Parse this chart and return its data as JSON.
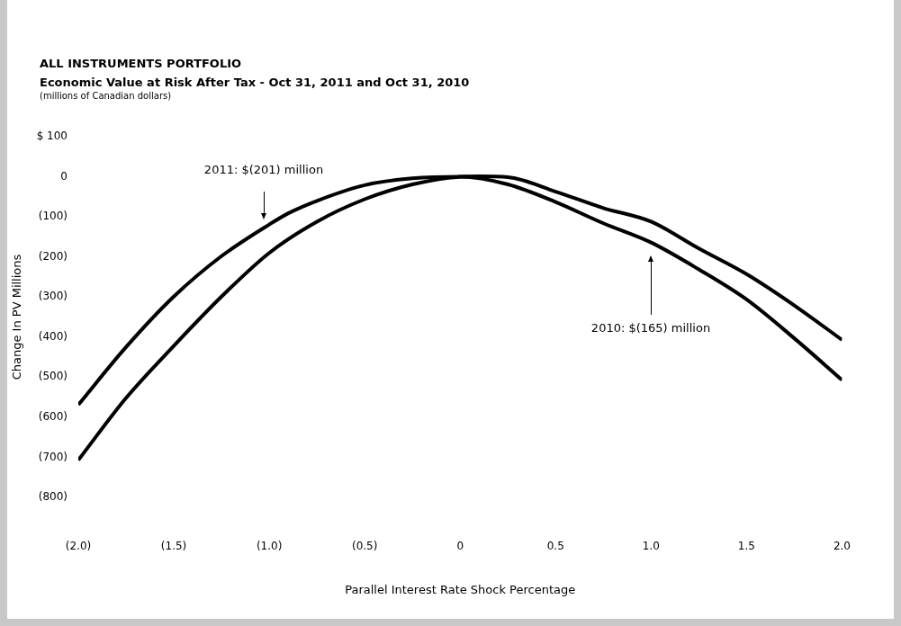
{
  "chart_data": {
    "type": "line",
    "title": "ALL INSTRUMENTS PORTFOLIO",
    "subtitle": "Economic Value at Risk After Tax - Oct 31, 2011 and Oct 31, 2010",
    "xlabel": "Parallel Interest Rate Shock Percentage",
    "ylabel": "Change In PV Millions",
    "annotations": [
      "(millions of Canadian dollars)",
      "2011: $(201) million",
      "2010: $(165) million"
    ],
    "series": [
      {
        "color": "#000000",
        "x": [
          -2,
          -1.75,
          -1.5,
          -1.25,
          -1,
          -0.9,
          -0.75,
          -0.5,
          -0.25,
          0,
          0.25,
          0.5,
          0.75,
          1,
          1.25,
          1.5,
          1.75,
          2
        ],
        "values": [
          -569,
          -425,
          -299,
          -198,
          -119,
          -91,
          -60,
          -21,
          -4,
          0,
          -19,
          -63,
          -116,
          -164,
          -231,
          -306,
          -403,
          -507
        ]
      },
      {
        "color": "#000000",
        "x": [
          -2,
          -1.75,
          -1.5,
          -1.25,
          -1,
          -0.75,
          -0.5,
          -0.25,
          0,
          0.1,
          0.25,
          0.5,
          0.75,
          1,
          1.25,
          1.5,
          1.75,
          2
        ],
        "values": [
          -707,
          -552,
          -422,
          -299,
          -190,
          -112,
          -56,
          -19,
          0,
          1,
          -1,
          -37,
          -78,
          -112,
          -179,
          -243,
          -321,
          -407
        ]
      }
    ],
    "xlim": [
      -2,
      2
    ],
    "ylim": [
      -800,
      100
    ],
    "xticks": [
      {
        "value": -2,
        "label": "(2.0)"
      },
      {
        "value": -1.5,
        "label": "(1.5)"
      },
      {
        "value": -1,
        "label": "(1.0)"
      },
      {
        "value": -0.5,
        "label": "(0.5)"
      },
      0,
      {
        "value": 0.5,
        "label": "0.5"
      },
      {
        "value": 1,
        "label": "1.0"
      },
      {
        "value": 1.5,
        "label": "1.5"
      },
      {
        "value": 2,
        "label": "2.0"
      }
    ],
    "yticks": [
      {
        "value": 100,
        "label": "$ 100"
      },
      0,
      {
        "value": -100,
        "label": "(100)"
      },
      {
        "value": -200,
        "label": "(200)"
      },
      {
        "value": -300,
        "label": "(300)"
      },
      {
        "value": -400,
        "label": "(400)"
      },
      {
        "value": -500,
        "label": "(500)"
      },
      {
        "value": -600,
        "label": "(600)"
      },
      {
        "value": -700,
        "label": "(700)"
      },
      {
        "value": -800,
        "label": "(800)"
      }
    ],
    "grid": false,
    "legend": false,
    "marker": "none",
    "line_style": "solid"
  }
}
